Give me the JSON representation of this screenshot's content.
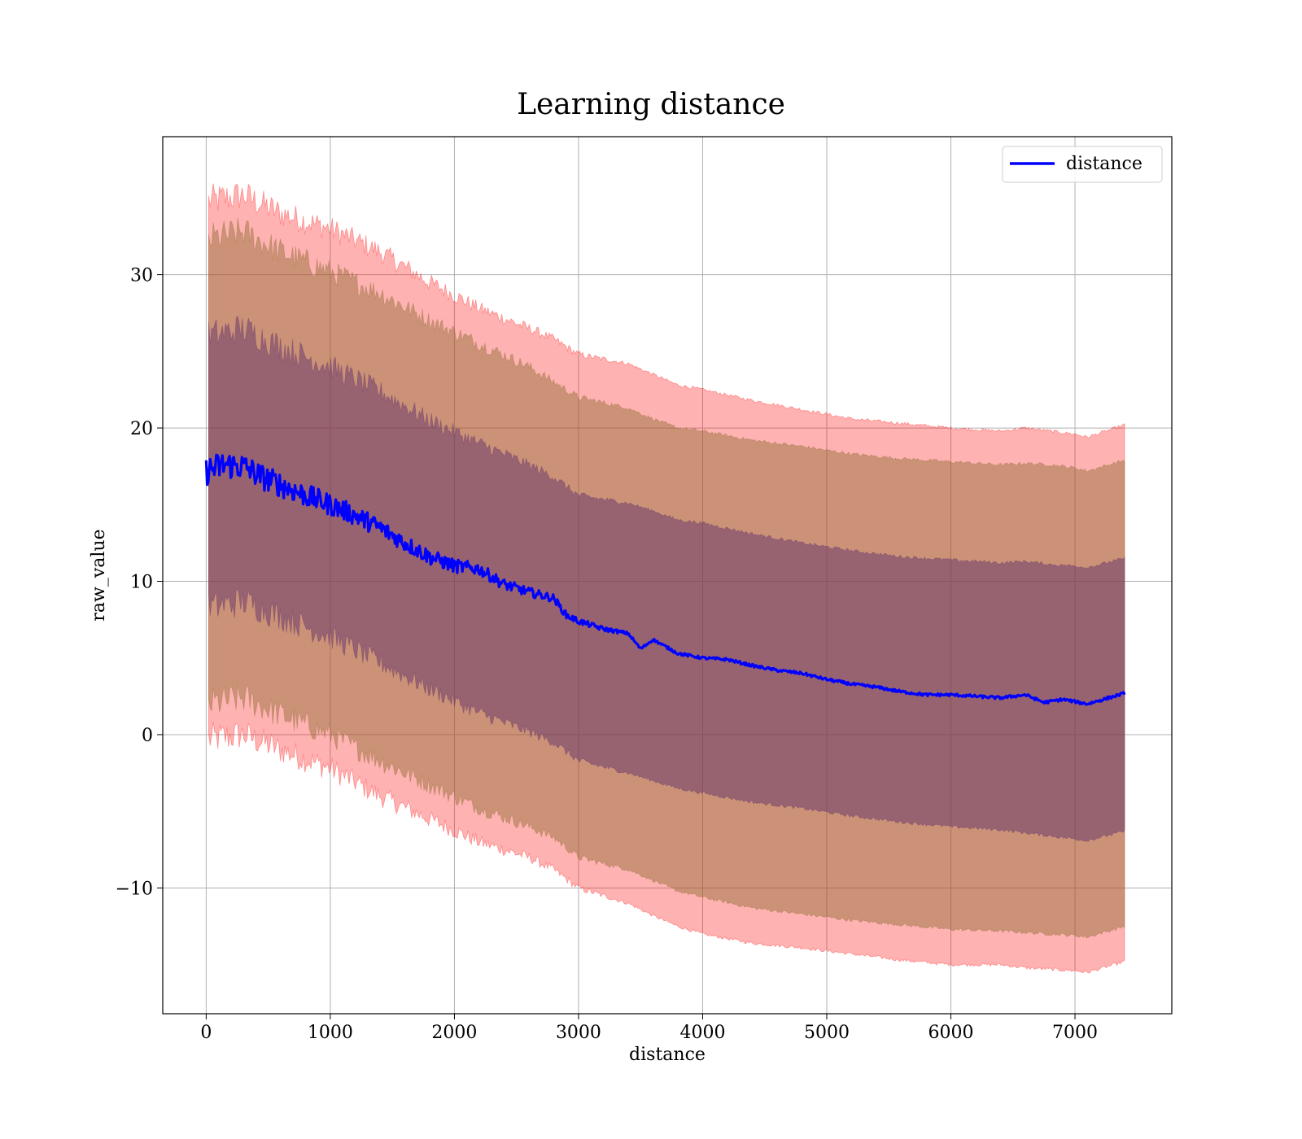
{
  "chart_data": {
    "type": "line",
    "title": "Learning distance",
    "xlabel": "distance",
    "ylabel": "raw_value",
    "xlim": [
      -350,
      7780
    ],
    "ylim": [
      -18.2,
      39.0
    ],
    "grid": true,
    "legend_position": "top-right",
    "x_ticks": [
      0,
      1000,
      2000,
      3000,
      4000,
      5000,
      6000,
      7000
    ],
    "y_ticks": [
      -10,
      0,
      10,
      20,
      30
    ],
    "y_tick_labels": [
      "−10",
      "0",
      "10",
      "20",
      "30"
    ],
    "colors": {
      "mean_line": "#0000ff",
      "band_outer": "#ff0000",
      "band_middle": "#8b6a2f",
      "band_inner": "#5a2a6a"
    },
    "series": [
      {
        "name": "distance",
        "x": [
          0,
          150,
          300,
          450,
          600,
          800,
          1000,
          1200,
          1400,
          1600,
          1800,
          2000,
          2200,
          2400,
          2600,
          2800,
          2900,
          3000,
          3200,
          3400,
          3500,
          3600,
          3800,
          4000,
          4200,
          4400,
          4600,
          4800,
          5000,
          5200,
          5400,
          5600,
          5800,
          6000,
          6200,
          6400,
          6600,
          6750,
          6900,
          7100,
          7400
        ],
        "y": [
          17.2,
          17.6,
          17.5,
          16.8,
          16.3,
          15.6,
          15.0,
          14.3,
          13.5,
          12.5,
          11.6,
          11.0,
          10.8,
          9.8,
          9.3,
          8.9,
          7.8,
          7.4,
          6.9,
          6.6,
          5.6,
          6.2,
          5.3,
          5.0,
          4.9,
          4.5,
          4.2,
          4.0,
          3.6,
          3.3,
          3.1,
          2.8,
          2.6,
          2.6,
          2.5,
          2.4,
          2.6,
          2.1,
          2.3,
          2.0,
          2.7
        ]
      }
    ],
    "bands": [
      {
        "level": "outer",
        "x": [
          20,
          300,
          600,
          1000,
          1400,
          1800,
          2200,
          2600,
          2800,
          3000,
          3400,
          3600,
          3800,
          4000,
          4400,
          4800,
          5200,
          5600,
          6000,
          6400,
          6600,
          6800,
          7000,
          7100,
          7400
        ],
        "upper": [
          34.8,
          35.2,
          34.0,
          33.0,
          31.5,
          29.5,
          27.8,
          26.5,
          25.8,
          24.8,
          24.2,
          23.5,
          22.8,
          22.5,
          21.8,
          21.2,
          20.6,
          20.3,
          20.0,
          19.8,
          20.0,
          19.8,
          19.6,
          19.4,
          20.2
        ],
        "lower": [
          -0.3,
          0.0,
          -1.0,
          -2.2,
          -4.0,
          -5.5,
          -7.0,
          -8.0,
          -8.8,
          -10.0,
          -11.0,
          -11.8,
          -12.5,
          -13.0,
          -13.6,
          -13.9,
          -14.3,
          -14.7,
          -15.0,
          -15.0,
          -15.2,
          -15.3,
          -15.4,
          -15.5,
          -14.8
        ]
      },
      {
        "level": "middle",
        "x": [
          20,
          300,
          600,
          1000,
          1400,
          1800,
          2200,
          2600,
          2800,
          3000,
          3400,
          3600,
          3800,
          4000,
          4400,
          4800,
          5200,
          5600,
          6000,
          6400,
          6600,
          6800,
          7000,
          7100,
          7400
        ],
        "upper": [
          32.3,
          32.8,
          31.5,
          30.2,
          28.8,
          27.0,
          25.5,
          24.0,
          23.0,
          22.0,
          21.3,
          20.6,
          20.0,
          19.8,
          19.2,
          18.8,
          18.3,
          18.0,
          17.8,
          17.6,
          17.7,
          17.6,
          17.4,
          17.2,
          17.9
        ],
        "lower": [
          2.0,
          2.4,
          1.3,
          0.0,
          -1.7,
          -3.3,
          -4.8,
          -6.0,
          -6.7,
          -8.0,
          -8.8,
          -9.5,
          -10.2,
          -10.6,
          -11.3,
          -11.7,
          -12.1,
          -12.4,
          -12.7,
          -12.8,
          -12.9,
          -13.0,
          -13.1,
          -13.2,
          -12.5
        ]
      },
      {
        "level": "inner",
        "x": [
          20,
          300,
          600,
          1000,
          1400,
          1800,
          2200,
          2600,
          2800,
          3000,
          3400,
          3600,
          3800,
          4000,
          4400,
          4800,
          5200,
          5600,
          6000,
          6400,
          6600,
          6800,
          7000,
          7100,
          7400
        ],
        "upper": [
          26.0,
          26.5,
          25.3,
          24.0,
          22.4,
          20.5,
          19.0,
          17.6,
          16.8,
          15.6,
          15.1,
          14.6,
          14.0,
          13.8,
          13.1,
          12.5,
          12.0,
          11.6,
          11.4,
          11.2,
          11.3,
          11.1,
          11.0,
          10.9,
          11.5
        ],
        "lower": [
          8.3,
          8.7,
          7.7,
          6.4,
          4.7,
          3.0,
          1.4,
          0.2,
          -0.5,
          -1.7,
          -2.5,
          -3.0,
          -3.5,
          -3.8,
          -4.4,
          -4.8,
          -5.3,
          -5.7,
          -6.0,
          -6.2,
          -6.4,
          -6.6,
          -6.8,
          -6.9,
          -6.3
        ]
      }
    ]
  }
}
